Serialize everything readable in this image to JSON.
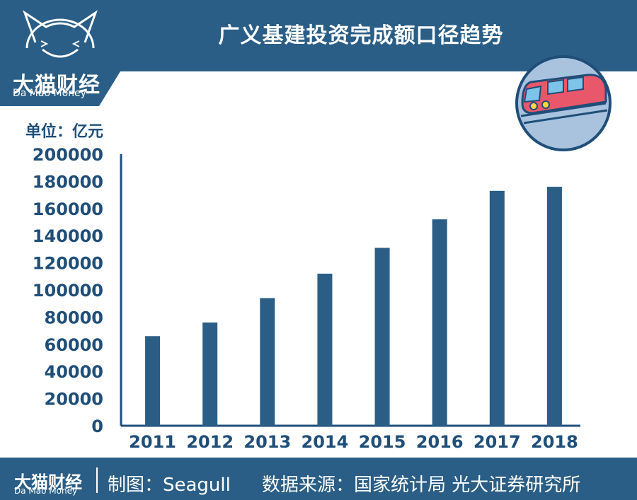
{
  "brand": {
    "name": "大猫财经",
    "sub": "Da Mao Money"
  },
  "unit_label": "单位：亿元",
  "footer": {
    "brand": "大猫财经",
    "brand_sub": "Da Mao Money",
    "maker": "制图：Seagull",
    "source": "数据来源：国家统计局 光大证券研究所"
  },
  "colors": {
    "header": "#2a5e86",
    "bar": "#2a5e86",
    "axis": "#1f4e79",
    "badge": "#a9c3df"
  },
  "chart_data": {
    "type": "bar",
    "title": "广义基建投资完成额口径趋势",
    "categories": [
      "2011",
      "2012",
      "2013",
      "2014",
      "2015",
      "2016",
      "2017",
      "2018"
    ],
    "values": [
      66000,
      76000,
      94000,
      112000,
      131000,
      152000,
      173000,
      176000
    ],
    "xlabel": "",
    "ylabel": "",
    "ylim": [
      0,
      200000
    ],
    "yticks": [
      "0",
      "20000",
      "40000",
      "60000",
      "80000",
      "100000",
      "120000",
      "140000",
      "160000",
      "180000",
      "200000"
    ],
    "grid": false,
    "legend": "none"
  }
}
